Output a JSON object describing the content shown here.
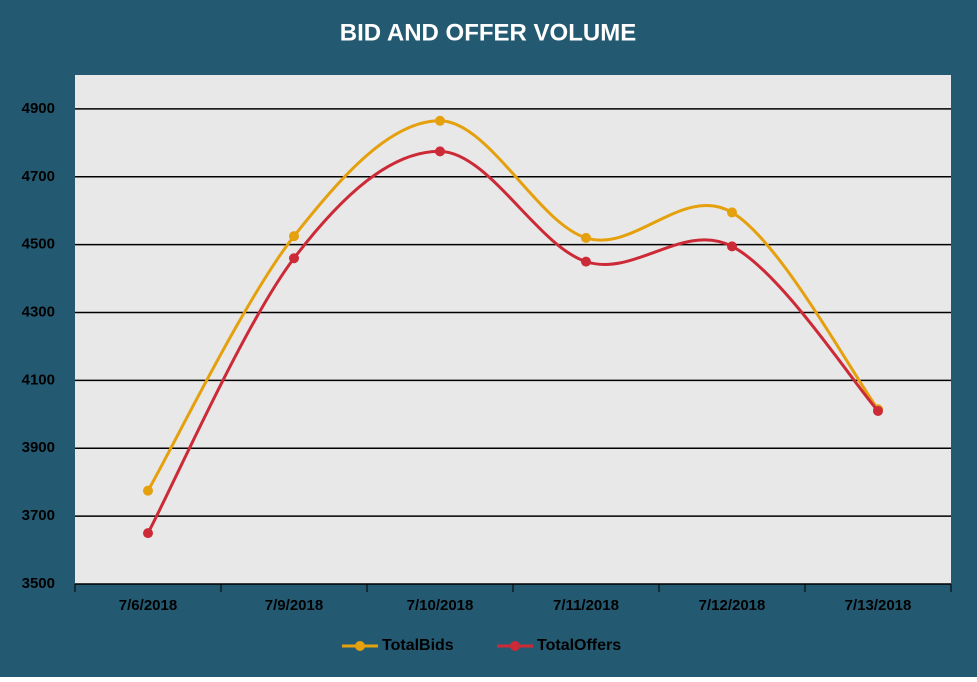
{
  "chart_data": {
    "type": "line",
    "title": "BID AND OFFER VOLUME",
    "categories": [
      "7/6/2018",
      "7/9/2018",
      "7/10/2018",
      "7/11/2018",
      "7/12/2018",
      "7/13/2018"
    ],
    "series": [
      {
        "name": "TotalBids",
        "color": "#e5a00d",
        "values": [
          3775,
          4525,
          4865,
          4520,
          4595,
          4015
        ]
      },
      {
        "name": "TotalOffers",
        "color": "#cc2a36",
        "values": [
          3650,
          4460,
          4775,
          4450,
          4495,
          4010
        ]
      }
    ],
    "ylim": [
      3500,
      5000
    ],
    "yticks": [
      3500,
      3700,
      3900,
      4100,
      4300,
      4500,
      4700,
      4900
    ],
    "grid": true,
    "smooth": true,
    "legend": "bottom"
  }
}
